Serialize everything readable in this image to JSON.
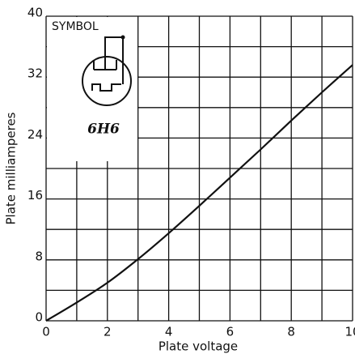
{
  "chart_data": {
    "type": "line",
    "xlabel": "Plate voltage",
    "ylabel": "Plate milliamperes",
    "annotations": [
      "SYMBOL",
      "6H6"
    ],
    "x": [
      0,
      1,
      2,
      3,
      4,
      5,
      6,
      7,
      8,
      9,
      10
    ],
    "values": [
      0,
      2.4,
      5,
      8.1,
      11.5,
      15.1,
      18.8,
      22.5,
      26.3,
      30,
      33.6
    ],
    "color": "#111111",
    "xlim": [
      0,
      10
    ],
    "ylim": [
      0,
      40
    ],
    "xticks": [
      0,
      2,
      4,
      6,
      8,
      10
    ],
    "yticks": [
      0,
      8,
      16,
      24,
      32,
      40
    ],
    "x_grid": [
      0,
      1,
      2,
      3,
      4,
      5,
      6,
      7,
      8,
      9,
      10
    ],
    "y_grid": [
      0,
      4,
      8,
      12,
      16,
      20,
      24,
      28,
      32,
      36,
      40
    ],
    "grid": true
  }
}
